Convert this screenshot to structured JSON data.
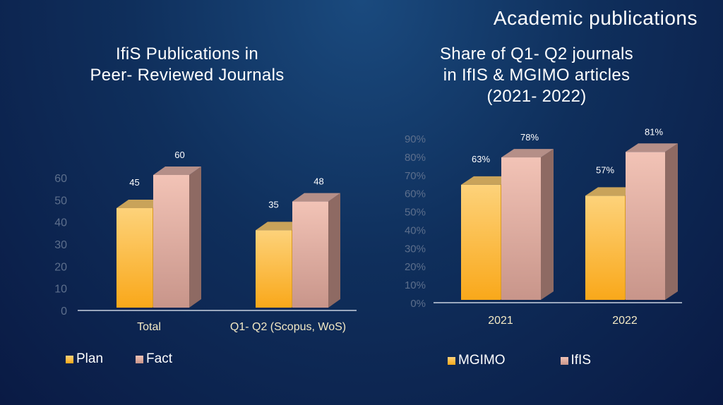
{
  "header": {
    "title": "Academic publications"
  },
  "colors": {
    "series_a": "#f9b233",
    "series_b": "#d9a39a",
    "tick": "#5d6f8c",
    "cat": "#f3e9c4",
    "axis": "#c9d2e0"
  },
  "chart_data": [
    {
      "type": "bar",
      "title_line1": "IfiS Publications in",
      "title_line2": "Peer- Reviewed Journals",
      "categories": [
        "Total",
        "Q1- Q2 (Scopus, WoS)"
      ],
      "series": [
        {
          "name": "Plan",
          "values": [
            45,
            35
          ],
          "labels": [
            "45",
            "35"
          ]
        },
        {
          "name": "Fact",
          "values": [
            60,
            48
          ],
          "labels": [
            "60",
            "48"
          ]
        }
      ],
      "yticks": [
        "0",
        "10",
        "20",
        "30",
        "40",
        "50",
        "60"
      ],
      "ylim": [
        0,
        60
      ],
      "legend": "bottom-left"
    },
    {
      "type": "bar",
      "title_line1": "Share of Q1- Q2 journals",
      "title_line2": "in IfIS & MGIMO articles",
      "title_line3": "(2021- 2022)",
      "categories": [
        "2021",
        "2022"
      ],
      "series": [
        {
          "name": "MGIMO",
          "values": [
            63,
            57
          ],
          "labels": [
            "63%",
            "57%"
          ]
        },
        {
          "name": "IfIS",
          "values": [
            78,
            81
          ],
          "labels": [
            "78%",
            "81%"
          ]
        }
      ],
      "yticks": [
        "0%",
        "10%",
        "20%",
        "30%",
        "40%",
        "50%",
        "60%",
        "70%",
        "80%",
        "90%"
      ],
      "ylim": [
        0,
        90
      ],
      "legend": "bottom"
    }
  ]
}
